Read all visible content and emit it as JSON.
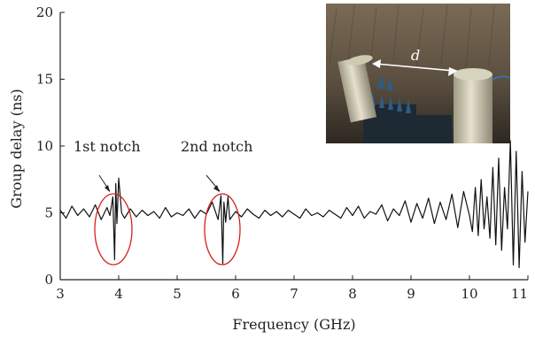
{
  "chart_data": {
    "type": "line",
    "xlabel": "Frequency (GHz)",
    "ylabel": "Group delay (ns)",
    "xlim": [
      3,
      11
    ],
    "ylim": [
      0,
      20
    ],
    "xticks": [
      "3",
      "4",
      "5",
      "6",
      "7",
      "8",
      "9",
      "10",
      "11"
    ],
    "yticks": [
      "0",
      "5",
      "10",
      "15",
      "20"
    ],
    "grid": false,
    "series": [
      {
        "color": "#111111",
        "x": [
          3.0,
          3.1,
          3.2,
          3.3,
          3.4,
          3.5,
          3.6,
          3.7,
          3.8,
          3.85,
          3.9,
          3.93,
          3.95,
          3.97,
          4.0,
          4.05,
          4.1,
          4.2,
          4.3,
          4.4,
          4.5,
          4.6,
          4.7,
          4.8,
          4.9,
          5.0,
          5.1,
          5.2,
          5.3,
          5.4,
          5.5,
          5.6,
          5.7,
          5.75,
          5.78,
          5.8,
          5.83,
          5.87,
          5.9,
          6.0,
          6.1,
          6.2,
          6.3,
          6.4,
          6.5,
          6.6,
          6.7,
          6.8,
          6.9,
          7.0,
          7.1,
          7.2,
          7.3,
          7.4,
          7.5,
          7.6,
          7.7,
          7.8,
          7.9,
          8.0,
          8.1,
          8.2,
          8.3,
          8.4,
          8.5,
          8.6,
          8.7,
          8.8,
          8.9,
          9.0,
          9.1,
          9.2,
          9.3,
          9.4,
          9.5,
          9.6,
          9.7,
          9.8,
          9.9,
          10.0,
          10.05,
          10.1,
          10.15,
          10.2,
          10.25,
          10.3,
          10.35,
          10.4,
          10.45,
          10.5,
          10.55,
          10.6,
          10.65,
          10.7,
          10.75,
          10.8,
          10.85,
          10.9,
          10.95,
          11.0
        ],
        "values": [
          5.2,
          4.6,
          5.5,
          4.8,
          5.3,
          4.7,
          5.6,
          4.5,
          5.4,
          4.8,
          6.2,
          1.5,
          7.2,
          4.2,
          7.6,
          5.0,
          4.6,
          5.3,
          4.7,
          5.2,
          4.8,
          5.1,
          4.6,
          5.4,
          4.7,
          5.0,
          4.8,
          5.3,
          4.6,
          5.2,
          4.9,
          5.8,
          4.5,
          6.3,
          1.2,
          5.8,
          4.3,
          6.2,
          4.5,
          5.1,
          4.7,
          5.3,
          4.9,
          4.6,
          5.2,
          4.8,
          5.1,
          4.7,
          5.2,
          4.9,
          4.6,
          5.3,
          4.8,
          5.0,
          4.7,
          5.2,
          4.9,
          4.6,
          5.4,
          4.8,
          5.5,
          4.6,
          5.1,
          4.9,
          5.6,
          4.4,
          5.3,
          4.8,
          5.9,
          4.3,
          5.7,
          4.6,
          6.1,
          4.2,
          5.8,
          4.5,
          6.4,
          3.9,
          6.6,
          4.8,
          3.6,
          6.9,
          3.3,
          7.5,
          3.8,
          6.2,
          3.1,
          8.4,
          2.6,
          9.1,
          2.2,
          6.9,
          3.8,
          10.4,
          1.1,
          9.6,
          0.9,
          8.1,
          2.8,
          6.6
        ]
      }
    ],
    "annotations": [
      {
        "text": "1st notch",
        "x": 3.95,
        "y": 1.5
      },
      {
        "text": "2nd notch",
        "x": 5.8,
        "y": 1.2
      }
    ],
    "inset_labels": [
      "d"
    ]
  }
}
